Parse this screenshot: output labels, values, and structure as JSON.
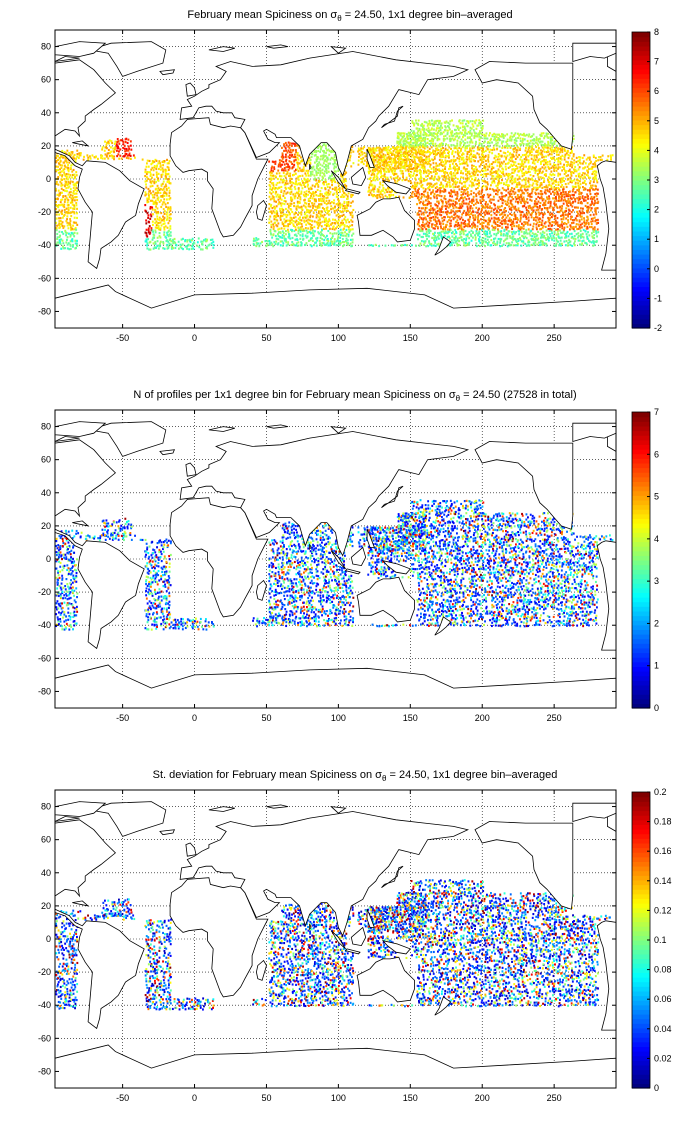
{
  "figure": {
    "panels": [
      {
        "id": "spice",
        "title_pre": "February mean Spiciness on σ",
        "title_sub": "θ",
        "title_post": " = 24.50, 1x1 degree bin–averaged",
        "colorbar": {
          "min": -2,
          "max": 8,
          "ticks": [
            "-2",
            "-1",
            "0",
            "1",
            "2",
            "3",
            "4",
            "5",
            "6",
            "7",
            "8"
          ]
        }
      },
      {
        "id": "nprof",
        "title_pre": "N of profiles per 1x1 degree bin for February mean Spiciness on σ",
        "title_sub": "θ",
        "title_post": " = 24.50 (27528 in total)",
        "colorbar": {
          "min": 0,
          "max": 7,
          "ticks": [
            "0",
            "1",
            "2",
            "3",
            "4",
            "5",
            "6",
            "7"
          ]
        }
      },
      {
        "id": "stdev",
        "title_pre": "St. deviation for February mean Spiciness on σ",
        "title_sub": "θ",
        "title_post": " = 24.50, 1x1 degree bin–averaged",
        "colorbar": {
          "min": 0,
          "max": 0.2,
          "ticks": [
            "0",
            "0.02",
            "0.04",
            "0.06",
            "0.08",
            "0.1",
            "0.12",
            "0.14",
            "0.16",
            "0.18",
            "0.2"
          ]
        }
      }
    ],
    "xticks": [
      "-50",
      "0",
      "50",
      "100",
      "150",
      "200",
      "250"
    ],
    "xtick_values": [
      -50,
      0,
      50,
      100,
      150,
      200,
      250
    ],
    "yticks": [
      "80",
      "60",
      "40",
      "20",
      "0",
      "-20",
      "-40",
      "-60",
      "-80"
    ],
    "ytick_values": [
      80,
      60,
      40,
      20,
      0,
      -20,
      -40,
      -60,
      -80
    ],
    "xlim": [
      -97,
      293
    ],
    "ylim": [
      -90,
      90
    ],
    "grid": true,
    "colormap": "jet"
  }
}
